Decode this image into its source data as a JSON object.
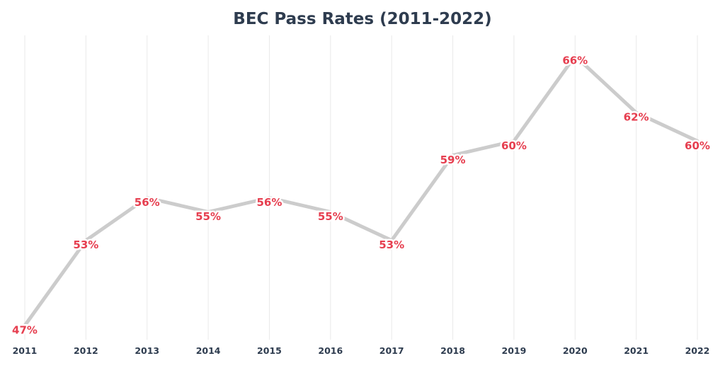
{
  "chart_data": {
    "type": "line",
    "title": "BEC Pass Rates (2011-2022)",
    "xlabel": "",
    "ylabel": "",
    "categories": [
      "2011",
      "2012",
      "2013",
      "2014",
      "2015",
      "2016",
      "2017",
      "2018",
      "2019",
      "2020",
      "2021",
      "2022"
    ],
    "series": [
      {
        "values": [
          47,
          53,
          56,
          55,
          56,
          55,
          53,
          59,
          60,
          66,
          62,
          60
        ],
        "data_labels": [
          "47%",
          "53%",
          "56%",
          "55%",
          "56%",
          "55%",
          "53%",
          "59%",
          "60%",
          "66%",
          "62%",
          "60%"
        ]
      }
    ],
    "ylim": [
      47,
      66
    ],
    "grid": "vertical",
    "legend": "none"
  },
  "colors": {
    "line": "#cccccc",
    "label": "#e63e4f",
    "title": "#2e3c4f",
    "grid": "#e9e9e9"
  }
}
